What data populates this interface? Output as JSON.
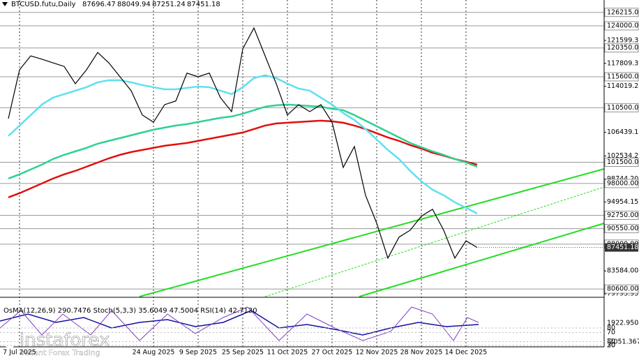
{
  "chart_data": {
    "type": "line",
    "symbol": "BTCUSD.futu,Daily",
    "ohlc": [
      87696.47,
      88049.94,
      87251.24,
      87451.18
    ],
    "categories": [
      null,
      "7 Jul 2025",
      null,
      null,
      null,
      null,
      null,
      null,
      null,
      null,
      null,
      null,
      null,
      "24 Aug 2025",
      null,
      null,
      null,
      "9 Sep 2025",
      null,
      null,
      null,
      "25 Sep 2025",
      null,
      null,
      null,
      "11 Oct 2025",
      null,
      null,
      null,
      "27 Oct 2025",
      null,
      null,
      null,
      "12 Nov 2025",
      null,
      null,
      null,
      "28 Nov 2025",
      null,
      null,
      null,
      "14 Dec 2025",
      null
    ],
    "series": [
      {
        "color": "#000000",
        "values": [
          108700,
          116750,
          119050,
          118500,
          117900,
          117300,
          114450,
          116750,
          119600,
          117900,
          115600,
          113300,
          109300,
          108100,
          111000,
          111600,
          116200,
          115600,
          116200,
          112150,
          109850,
          120200,
          123650,
          119050,
          114450,
          109300,
          111000,
          109850,
          111000,
          108100,
          100650,
          104100,
          96050,
          91450,
          85700,
          89150,
          90300,
          92600,
          93750,
          90300,
          85700,
          88550,
          87450
        ]
      },
      {
        "color": "#5ee0f0",
        "values": [
          105830,
          107555,
          109280,
          111005,
          112155,
          112730,
          113305,
          113880,
          114685,
          115030,
          115030,
          114685,
          114225,
          113880,
          113535,
          113535,
          113765,
          113995,
          113880,
          113305,
          112730,
          113880,
          115375,
          115835,
          115375,
          114455,
          113650,
          113305,
          112155,
          111005,
          109625,
          108475,
          106980,
          105255,
          103530,
          102035,
          100080,
          98355,
          96975,
          96055,
          94905,
          93985,
          93065
        ]
      },
      {
        "color": "#2fd090",
        "values": [
          98815,
          99505,
          100310,
          101115,
          102035,
          102725,
          103300,
          103875,
          104565,
          105025,
          105485,
          105945,
          106405,
          106865,
          107210,
          107555,
          107785,
          108130,
          108475,
          108820,
          109050,
          109510,
          110085,
          110660,
          110890,
          111005,
          110890,
          110775,
          110660,
          110315,
          110085,
          109280,
          108360,
          107440,
          106520,
          105600,
          104680,
          103990,
          103300,
          102725,
          102035,
          101460,
          100770
        ]
      },
      {
        "color": "#e01010",
        "values": [
          95710,
          96400,
          97205,
          98010,
          98815,
          99505,
          100080,
          100770,
          101460,
          102150,
          102725,
          103185,
          103530,
          103875,
          104220,
          104450,
          104680,
          105025,
          105370,
          105715,
          106060,
          106405,
          106980,
          107555,
          107900,
          108015,
          108130,
          108245,
          108360,
          108245,
          108015,
          107555,
          106980,
          106290,
          105600,
          105025,
          104335,
          103760,
          103070,
          102610,
          102035,
          101575,
          101115
        ]
      }
    ],
    "ylim": [
      79350,
      128258
    ],
    "levels": [
      {
        "value": 126215,
        "label": "126215.00"
      },
      {
        "value": 124000,
        "label": "124000.00"
      },
      {
        "value": 120350,
        "label": "120350.00"
      },
      {
        "value": 115600,
        "label": "115600.00"
      },
      {
        "value": 110500,
        "label": "110500.00"
      },
      {
        "value": 101500,
        "label": "101500.00"
      },
      {
        "value": 98000,
        "label": "98000.00"
      },
      {
        "value": 92750,
        "label": "92750.00"
      },
      {
        "value": 90550,
        "label": "90550.00"
      },
      {
        "value": 88000,
        "label": "88000.00"
      },
      {
        "value": 80600,
        "label": "80600.00"
      }
    ],
    "yticks": [
      121599.35,
      {
        "value": 117809.3,
        "label": "117809.30"
      },
      114019.25,
      106439.15,
      102534.25,
      {
        "value": 98744.2,
        "label": "98744.20"
      },
      94954.15,
      {
        "value": 83584,
        "label": "83584.00"
      },
      79793.95
    ],
    "oscillator": {
      "title": "OsMA(12,26,9) 290.7476  Stoch(5,3,3) 35.6049 47.5004  RSI(14) 42.7130",
      "yticks": [
        80,
        70,
        50,
        30,
        20
      ],
      "osma_yticks": [
        1922.9504,
        -2051.3672
      ]
    },
    "logo": "instaforex",
    "logo_tagline": "Instant Forex Trading"
  }
}
